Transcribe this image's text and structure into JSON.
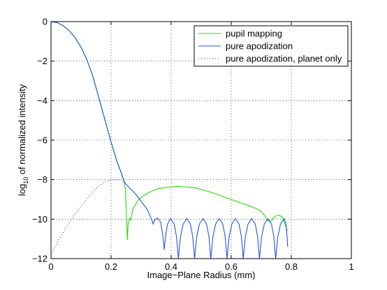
{
  "chart_data": {
    "type": "line",
    "xlabel": "Image−Plane Radius (mm)",
    "ylabel_prefix": "log",
    "ylabel_sub": "10",
    "ylabel_rest": " of normalized intensity",
    "xlim": [
      0,
      1
    ],
    "ylim": [
      -12,
      0
    ],
    "x_ticks": [
      0,
      0.2,
      0.4,
      0.6,
      0.8,
      1
    ],
    "x_tick_labels": [
      "0",
      "0.2",
      "0.4",
      "0.6",
      "0.8",
      "1"
    ],
    "y_ticks": [
      0,
      -2,
      -4,
      -6,
      -8,
      -10,
      -12
    ],
    "y_tick_labels": [
      "0",
      "−2",
      "−4",
      "−6",
      "−8",
      "−10",
      "−12"
    ],
    "grid": true,
    "legend_placement": "top-right",
    "series": [
      {
        "name": "pupil mapping",
        "color": "#22dd00",
        "style": "solid",
        "points": [
          [
            0.0,
            0.0
          ],
          [
            0.02,
            -0.05
          ],
          [
            0.04,
            -0.2
          ],
          [
            0.06,
            -0.45
          ],
          [
            0.08,
            -0.8
          ],
          [
            0.1,
            -1.3
          ],
          [
            0.12,
            -1.95
          ],
          [
            0.14,
            -2.8
          ],
          [
            0.16,
            -3.9
          ],
          [
            0.18,
            -5.0
          ],
          [
            0.2,
            -6.1
          ],
          [
            0.22,
            -7.1
          ],
          [
            0.235,
            -7.7
          ],
          [
            0.245,
            -8.2
          ],
          [
            0.248,
            -8.6
          ],
          [
            0.251,
            -9.8
          ],
          [
            0.254,
            -11.05
          ],
          [
            0.257,
            -10.2
          ],
          [
            0.262,
            -9.95
          ],
          [
            0.266,
            -10.05
          ],
          [
            0.272,
            -9.5
          ],
          [
            0.28,
            -9.3
          ],
          [
            0.29,
            -9.05
          ],
          [
            0.3,
            -8.9
          ],
          [
            0.32,
            -8.7
          ],
          [
            0.34,
            -8.55
          ],
          [
            0.36,
            -8.45
          ],
          [
            0.38,
            -8.4
          ],
          [
            0.4,
            -8.37
          ],
          [
            0.42,
            -8.35
          ],
          [
            0.44,
            -8.36
          ],
          [
            0.46,
            -8.38
          ],
          [
            0.48,
            -8.42
          ],
          [
            0.5,
            -8.5
          ],
          [
            0.52,
            -8.58
          ],
          [
            0.54,
            -8.68
          ],
          [
            0.56,
            -8.78
          ],
          [
            0.58,
            -8.9
          ],
          [
            0.6,
            -9.0
          ],
          [
            0.62,
            -9.12
          ],
          [
            0.64,
            -9.22
          ],
          [
            0.66,
            -9.32
          ],
          [
            0.68,
            -9.45
          ],
          [
            0.7,
            -9.6
          ],
          [
            0.71,
            -9.8
          ],
          [
            0.72,
            -10.05
          ],
          [
            0.73,
            -10.15
          ],
          [
            0.74,
            -9.95
          ],
          [
            0.75,
            -9.82
          ],
          [
            0.76,
            -9.8
          ],
          [
            0.77,
            -9.9
          ],
          [
            0.78,
            -10.3
          ],
          [
            0.787,
            -10.6
          ]
        ]
      },
      {
        "name": "pure apodization",
        "color": "#2255dd",
        "style": "solid",
        "points": [
          [
            0.0,
            0.0
          ],
          [
            0.02,
            -0.05
          ],
          [
            0.04,
            -0.2
          ],
          [
            0.06,
            -0.45
          ],
          [
            0.08,
            -0.8
          ],
          [
            0.1,
            -1.3
          ],
          [
            0.12,
            -1.95
          ],
          [
            0.14,
            -2.8
          ],
          [
            0.16,
            -3.9
          ],
          [
            0.18,
            -5.0
          ],
          [
            0.2,
            -6.1
          ],
          [
            0.22,
            -7.1
          ],
          [
            0.235,
            -7.7
          ],
          [
            0.245,
            -8.15
          ],
          [
            0.26,
            -8.4
          ],
          [
            0.28,
            -8.7
          ],
          [
            0.3,
            -9.1
          ],
          [
            0.32,
            -9.5
          ],
          [
            0.335,
            -10.0
          ],
          [
            0.34,
            -10.25
          ],
          [
            0.345,
            -10.05
          ],
          [
            0.355,
            -9.95
          ],
          [
            0.365,
            -10.15
          ],
          [
            0.372,
            -10.8
          ],
          [
            0.377,
            -11.55
          ],
          [
            0.382,
            -10.8
          ],
          [
            0.388,
            -10.25
          ],
          [
            0.398,
            -9.97
          ],
          [
            0.41,
            -10.25
          ],
          [
            0.418,
            -10.9
          ],
          [
            0.424,
            -12.0
          ],
          [
            0.431,
            -10.9
          ],
          [
            0.44,
            -10.25
          ],
          [
            0.452,
            -9.97
          ],
          [
            0.464,
            -10.25
          ],
          [
            0.472,
            -10.9
          ],
          [
            0.478,
            -12.0
          ],
          [
            0.485,
            -10.9
          ],
          [
            0.494,
            -10.25
          ],
          [
            0.506,
            -9.97
          ],
          [
            0.518,
            -10.25
          ],
          [
            0.526,
            -10.9
          ],
          [
            0.532,
            -12.0
          ],
          [
            0.539,
            -10.9
          ],
          [
            0.548,
            -10.25
          ],
          [
            0.56,
            -9.97
          ],
          [
            0.572,
            -10.25
          ],
          [
            0.58,
            -10.9
          ],
          [
            0.586,
            -12.0
          ],
          [
            0.593,
            -10.9
          ],
          [
            0.602,
            -10.25
          ],
          [
            0.614,
            -9.97
          ],
          [
            0.626,
            -10.25
          ],
          [
            0.634,
            -10.9
          ],
          [
            0.64,
            -12.0
          ],
          [
            0.647,
            -10.9
          ],
          [
            0.656,
            -10.25
          ],
          [
            0.668,
            -9.97
          ],
          [
            0.68,
            -10.25
          ],
          [
            0.688,
            -10.9
          ],
          [
            0.694,
            -12.0
          ],
          [
            0.701,
            -10.9
          ],
          [
            0.71,
            -10.25
          ],
          [
            0.722,
            -9.97
          ],
          [
            0.734,
            -10.25
          ],
          [
            0.742,
            -10.9
          ],
          [
            0.748,
            -12.0
          ],
          [
            0.755,
            -10.9
          ],
          [
            0.764,
            -10.25
          ],
          [
            0.776,
            -9.97
          ],
          [
            0.782,
            -10.2
          ],
          [
            0.786,
            -10.9
          ],
          [
            0.788,
            -11.4
          ]
        ]
      },
      {
        "name": "pure apodization, planet only",
        "color": "#223388",
        "style": "dotted",
        "points": [
          [
            0.0,
            -11.8
          ],
          [
            0.02,
            -11.2
          ],
          [
            0.04,
            -10.7
          ],
          [
            0.06,
            -10.2
          ],
          [
            0.08,
            -9.75
          ],
          [
            0.1,
            -9.35
          ],
          [
            0.12,
            -8.95
          ],
          [
            0.14,
            -8.6
          ],
          [
            0.16,
            -8.3
          ],
          [
            0.18,
            -8.1
          ],
          [
            0.2,
            -8.02
          ],
          [
            0.22,
            -8.0
          ],
          [
            0.24,
            -8.08
          ],
          [
            0.25,
            -8.15
          ]
        ]
      }
    ]
  }
}
